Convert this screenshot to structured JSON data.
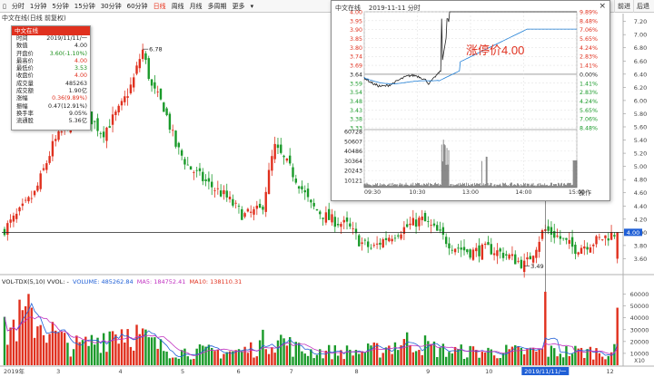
{
  "toolbar": {
    "items": [
      "分时",
      "1分钟",
      "5分钟",
      "15分钟",
      "30分钟",
      "60分钟",
      "日线",
      "周线",
      "月线",
      "多周期",
      "更多"
    ],
    "active_index": 6,
    "right_items": [
      "前进",
      "后退"
    ]
  },
  "chart_title": "中文在线(日线 前复权)",
  "infobox": {
    "header": "中文在线",
    "rows": [
      {
        "label": "时间",
        "value": "2019/11/11/一",
        "color": "#222222"
      },
      {
        "label": "数值",
        "value": "4.00",
        "color": "#222222"
      },
      {
        "label": "开盘价",
        "value": "3.60(-1.10%)",
        "color": "#1a8f1a"
      },
      {
        "label": "最高价",
        "value": "4.00",
        "color": "#e0301e"
      },
      {
        "label": "最低价",
        "value": "3.53",
        "color": "#1a8f1a"
      },
      {
        "label": "收盘价",
        "value": "4.00",
        "color": "#e0301e"
      },
      {
        "label": "成交量",
        "value": "485263",
        "color": "#222222"
      },
      {
        "label": "成交额",
        "value": "1.90亿",
        "color": "#222222"
      },
      {
        "label": "涨幅",
        "value": "0.36(9.89%)",
        "color": "#e0301e"
      },
      {
        "label": "振幅",
        "value": "0.47(12.91%)",
        "color": "#222222"
      },
      {
        "label": "换手率",
        "value": "9.05%",
        "color": "#222222"
      },
      {
        "label": "流通股",
        "value": "5.36亿",
        "color": "#222222"
      }
    ]
  },
  "popup": {
    "title": "中文在线    2019-11-11 分时",
    "close": "×",
    "limit_label": "涨停价4.00",
    "operation": "操作",
    "price_labels": [
      "4.00",
      "3.95",
      "3.90",
      "3.85",
      "3.80",
      "3.74",
      "3.69",
      "3.64",
      "3.59",
      "3.54",
      "3.48",
      "3.43",
      "3.38",
      "3.33"
    ],
    "pct_labels": [
      "9.89%",
      "8.48%",
      "7.06%",
      "5.65%",
      "4.24%",
      "2.83%",
      "1.41%",
      "0.00%",
      "1.41%",
      "2.83%",
      "4.24%",
      "5.65%",
      "7.06%",
      "8.48%"
    ],
    "volume_labels": [
      "60728",
      "50607",
      "40486",
      "30364",
      "20243",
      "10121"
    ],
    "time_labels": [
      "09:30",
      "10:30",
      "13:00",
      "14:00",
      "15:00"
    ]
  },
  "main_axis": {
    "labels": [
      "7.20",
      "7.00",
      "6.80",
      "6.60",
      "6.40",
      "6.20",
      "6.00",
      "5.80",
      "5.60",
      "5.40",
      "5.20",
      "5.00",
      "4.80",
      "4.60",
      "4.40",
      "4.20",
      "4.00",
      "3.80",
      "3.60"
    ],
    "current_price": "4.00"
  },
  "annotations": {
    "high": "6.78",
    "low": "3.49"
  },
  "volume_title": {
    "indicator": "VOL-TDX(5,10)  VVOL: -",
    "volume": "VOLUME: 485262.84",
    "ma5": "MA5: 184752.41",
    "ma10": "MA10: 138110.31"
  },
  "volume_axis": [
    "60000",
    "50000",
    "40000",
    "30000",
    "20000",
    "10000"
  ],
  "volume_unit": "X10",
  "date_axis": [
    "2019年",
    "3",
    "4",
    "5",
    "6",
    "7",
    "8",
    "9",
    "10",
    "11",
    "2019/11/11/一",
    "12"
  ],
  "colors": {
    "up": "#e0301e",
    "down": "#1a9a2a",
    "ma5": "#1f5fd6",
    "ma10": "#c030c0",
    "limit": "#e0301e"
  },
  "chart_data": [
    {
      "type": "candlestick",
      "title": "中文在线(日线 前复权)",
      "ylim": [
        3.4,
        7.25
      ],
      "annotations": [
        {
          "label": "6.78",
          "value": 6.78
        },
        {
          "label": "3.49",
          "value": 3.49
        }
      ],
      "last_bar": {
        "date": "2019/11/11",
        "open": 3.6,
        "high": 4.0,
        "low": 3.53,
        "close": 4.0
      },
      "month_labels": [
        "2019年",
        "3",
        "4",
        "5",
        "6",
        "7",
        "8",
        "9",
        "10",
        "11",
        "12"
      ],
      "close_approx": [
        [
          1,
          4.1
        ],
        [
          2,
          4.3
        ],
        [
          3,
          4.7
        ],
        [
          4,
          5.3
        ],
        [
          5,
          5.8
        ],
        [
          6,
          6.0
        ],
        [
          7,
          5.9
        ],
        [
          8,
          6.2
        ],
        [
          9,
          6.4
        ],
        [
          10,
          6.5
        ],
        [
          11,
          6.78
        ],
        [
          12,
          6.1
        ],
        [
          13,
          5.6
        ],
        [
          14,
          5.2
        ],
        [
          15,
          5.0
        ],
        [
          16,
          4.9
        ],
        [
          17,
          4.6
        ],
        [
          18,
          4.3
        ],
        [
          19,
          4.8
        ],
        [
          20,
          5.3
        ],
        [
          21,
          5.0
        ],
        [
          22,
          4.7
        ],
        [
          23,
          4.4
        ],
        [
          24,
          4.3
        ],
        [
          25,
          4.1
        ],
        [
          26,
          3.8
        ],
        [
          27,
          3.9
        ],
        [
          28,
          4.1
        ],
        [
          29,
          4.15
        ],
        [
          30,
          4.3
        ],
        [
          31,
          4.0
        ],
        [
          32,
          3.8
        ],
        [
          33,
          3.7
        ],
        [
          34,
          3.75
        ],
        [
          35,
          3.6
        ],
        [
          36,
          3.5
        ],
        [
          37,
          3.9
        ],
        [
          38,
          4.0
        ],
        [
          39,
          3.8
        ],
        [
          40,
          3.85
        ],
        [
          41,
          4.0
        ]
      ]
    },
    {
      "type": "line",
      "title": "中文在线 2019-11-11 分时",
      "ylim": [
        3.33,
        4.0
      ],
      "x": [
        "09:30",
        "10:00",
        "10:30",
        "11:00",
        "13:00",
        "13:30",
        "14:00",
        "14:30",
        "15:00"
      ],
      "series": [
        {
          "values": [
            3.62,
            3.6,
            3.58,
            3.62,
            4.0,
            4.0,
            4.0,
            4.0,
            4.0
          ]
        },
        {
          "values": [
            3.62,
            3.61,
            3.59,
            3.6,
            3.8,
            3.86,
            3.88,
            3.89,
            3.9
          ]
        }
      ]
    },
    {
      "type": "bar",
      "title": "VOL-TDX(5,10)",
      "ylim": [
        0,
        65000
      ],
      "unit": "X10",
      "last_value": 48526
    }
  ]
}
